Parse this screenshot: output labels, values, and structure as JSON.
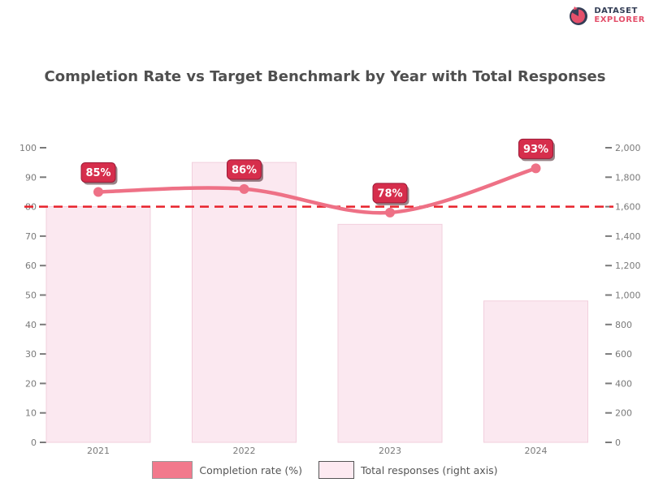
{
  "logo": {
    "line1": "DATASET",
    "line2": "EXPLORER",
    "navy": "#343e56",
    "pink": "#e4506b"
  },
  "title": "Completion Rate vs Target Benchmark by Year with Total Responses",
  "legend": {
    "items": [
      {
        "label": "Completion rate (%)",
        "swatch_color": "#f2798c",
        "swatch_border": "#9a9a9a",
        "represents": "line"
      },
      {
        "label": "Total responses (right axis)",
        "swatch_color": "#fdeaf1",
        "swatch_border": "#555555",
        "represents": "bar"
      }
    ]
  },
  "chart_data": {
    "type": "bar+line",
    "categories": [
      "2021",
      "2022",
      "2023",
      "2024"
    ],
    "series": [
      {
        "name": "Total responses (right axis)",
        "type": "bar",
        "axis": "right",
        "values": [
          1600,
          1900,
          1480,
          960
        ],
        "fill": "#fbe8f0",
        "stroke": "#f2cfdd"
      },
      {
        "name": "Completion rate (%)",
        "type": "line",
        "axis": "left",
        "values": [
          85,
          86,
          78,
          93
        ],
        "point_labels": [
          "85%",
          "86%",
          "78%",
          "93%"
        ],
        "color": "#ee7186"
      }
    ],
    "target_line": {
      "value": 80,
      "color": "#e8222b",
      "style": "dashed"
    },
    "left_axis": {
      "min": 0,
      "max": 100,
      "step": 10,
      "ticks": [
        "100",
        "90",
        "80",
        "70",
        "60",
        "50",
        "40",
        "30",
        "20",
        "10",
        "0"
      ]
    },
    "right_axis": {
      "min": 0,
      "max": 2000,
      "step": 200,
      "ticks": [
        "2,000",
        "1,800",
        "1,600",
        "1,400",
        "1,200",
        "1,000",
        "800",
        "600",
        "400",
        "200",
        "0"
      ]
    },
    "grid": false,
    "legend_position": "bottom",
    "badge": {
      "fill": "#d62e4c",
      "border": "#9c1b38",
      "text_color": "#ffffff",
      "shadow": "rgba(50,8,16,0.5)"
    },
    "tick_color": "#7a7a7a"
  }
}
